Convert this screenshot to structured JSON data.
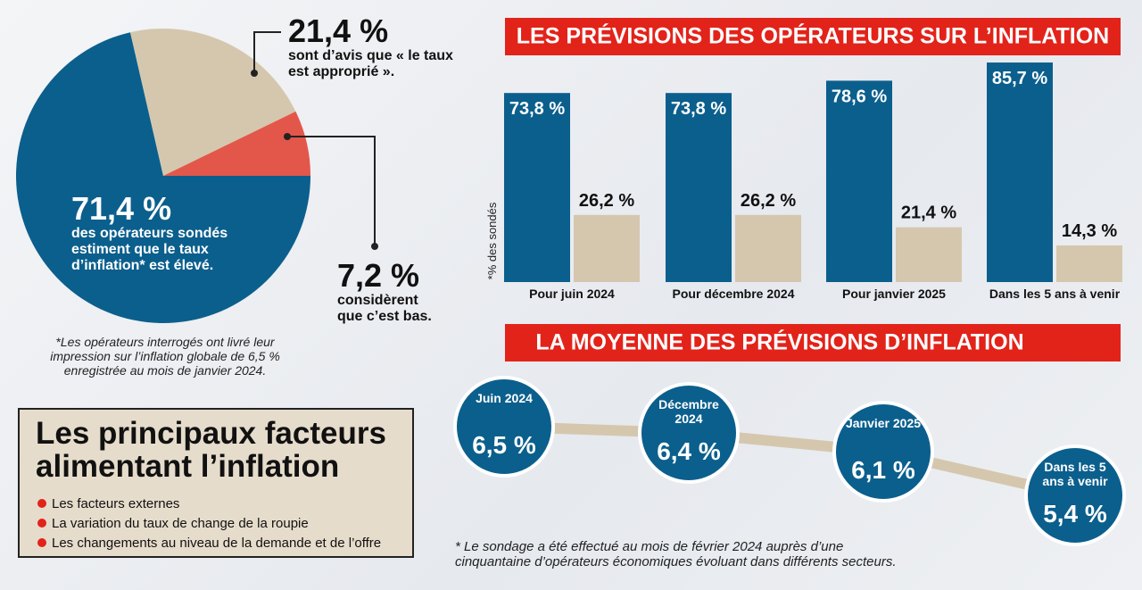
{
  "chart_data": [
    {
      "type": "pie",
      "values": [
        71.4,
        21.4,
        7.2
      ],
      "value_labels": [
        "71,4 %",
        "21,4 %",
        "7,2 %"
      ],
      "categories": [
        "des opérateurs sondés estiment que le taux d’inflation* est élevé.",
        "sont d’avis que « le taux est approprié ».",
        "considèrent que c’est bas."
      ],
      "colors": [
        "#0b5f8d",
        "#d5c7ae",
        "#e3574a"
      ],
      "note": "*Les opérateurs interrogés ont livré leur impression sur l’inflation globale de 6,5 % enregistrée au mois de janvier 2024."
    },
    {
      "type": "bar",
      "title": "LES PRÉVISIONS DES OPÉRATEURS SUR L’INFLATION",
      "ylabel": "*% des sondés",
      "categories": [
        "Pour juin 2024",
        "Pour décembre 2024",
        "Pour janvier 2025",
        "Dans les 5 ans à venir"
      ],
      "series": [
        {
          "color": "#0b5f8d",
          "values": [
            73.8,
            73.8,
            78.6,
            85.7
          ],
          "value_labels": [
            "73,8 %",
            "73,8 %",
            "78,6 %",
            "85,7 %"
          ]
        },
        {
          "color": "#d5c7ae",
          "values": [
            26.2,
            26.2,
            21.4,
            14.3
          ],
          "value_labels": [
            "26,2 %",
            "26,2 %",
            "21,4 %",
            "14,3 %"
          ]
        }
      ],
      "ylim": [
        0,
        100
      ]
    },
    {
      "type": "line",
      "title": "LA MOYENNE DES PRÉVISIONS D’INFLATION",
      "categories": [
        "Juin 2024",
        "Décembre 2024",
        "Janvier 2025",
        "Dans les 5 ans à venir"
      ],
      "values": [
        6.5,
        6.4,
        6.1,
        5.4
      ],
      "value_labels": [
        "6,5 %",
        "6,4 %",
        "6,1 %",
        "5,4 %"
      ],
      "color": "#0b5f8d",
      "line_color": "#d5c7ae",
      "ylim": [
        5,
        7
      ],
      "note": "* Le sondage a été effectué au mois de février 2024 auprès d’une cinquantaine d’opérateurs économiques évoluant dans différents secteurs."
    }
  ],
  "factors": {
    "title": "Les principaux facteurs alimentant l’inflation",
    "items": [
      "Les facteurs externes",
      "La variation du taux de change de la roupie",
      "Les changements au niveau de la demande et de l’offre"
    ]
  }
}
